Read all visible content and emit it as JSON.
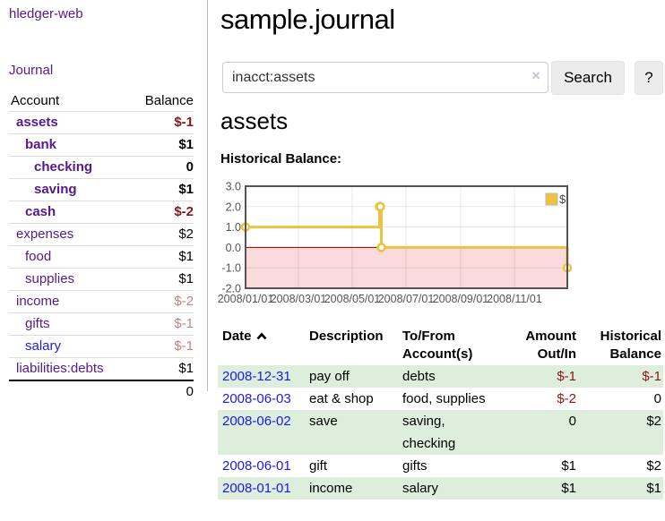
{
  "app": {
    "brand": "hledger-web",
    "nav_journal": "Journal"
  },
  "colors": {
    "purple_link": "#551a8b",
    "blue_link": "#1a1ae6",
    "negative": "#8b1616",
    "negative_dim": "#c08585",
    "row_green": "#ddeedd",
    "tick_gray": "#545454",
    "button_bg": "#ececec",
    "button_border": "#e3e3e3",
    "input_border": "#cccccc",
    "divider": "#bbbbbb",
    "sidebar_line": "#dddddd",
    "clear_icon": "#cbc3dc"
  },
  "sidebar": {
    "col_account": "Account",
    "col_balance": "Balance",
    "accounts": [
      {
        "name": "assets",
        "balance": "$-1"
      },
      {
        "name": "bank",
        "balance": "$1"
      },
      {
        "name": "checking",
        "balance": "0"
      },
      {
        "name": "saving",
        "balance": "$1"
      },
      {
        "name": "cash",
        "balance": "$-2"
      },
      {
        "name": "expenses",
        "balance": "$2"
      },
      {
        "name": "food",
        "balance": "$1"
      },
      {
        "name": "supplies",
        "balance": "$1"
      },
      {
        "name": "income",
        "balance": "$-2"
      },
      {
        "name": "gifts",
        "balance": "$-1"
      },
      {
        "name": "salary",
        "balance": "$-1"
      },
      {
        "name": "liabilities:debts",
        "balance": "$1"
      }
    ],
    "total": "0"
  },
  "header": {
    "title": "sample.journal"
  },
  "search": {
    "value": "inacct:assets",
    "clear_icon": "×",
    "button": "Search",
    "help_button": "?"
  },
  "account_page": {
    "heading": "assets",
    "chart_label": "Historical Balance:"
  },
  "chart_data": {
    "type": "line",
    "step": true,
    "title": "Historical Balance:",
    "series": [
      {
        "name": "$",
        "color": "#edc240",
        "points": [
          [
            "2008-01-01",
            1
          ],
          [
            "2008-06-01",
            2
          ],
          [
            "2008-06-02",
            2
          ],
          [
            "2008-06-03",
            0
          ],
          [
            "2008-12-31",
            -1
          ]
        ]
      }
    ],
    "xlim": [
      "2008-01-01",
      "2008-12-31"
    ],
    "ylim": [
      -2,
      3
    ],
    "x_ticks": [
      "2008/01/01",
      "2008/03/01",
      "2008/05/01",
      "2008/07/01",
      "2008/09/01",
      "2008/11/01"
    ],
    "y_ticks": [
      "3.0",
      "2.0",
      "1.0",
      "0.0",
      "-1.0",
      "-2.0"
    ],
    "legend_position": "top-right",
    "grid": true,
    "negative_region_color": "#fadada",
    "zero_line_color": "#8b0000",
    "border_color": "#545454"
  },
  "register": {
    "headers": {
      "date": "Date",
      "description": "Description",
      "accounts": "To/From Account(s)",
      "amount": "Amount Out/In",
      "balance": "Historical Balance"
    },
    "rows": [
      {
        "date": "2008-12-31",
        "description": "pay off",
        "accounts": "debts",
        "amount": "$-1",
        "balance": "$-1"
      },
      {
        "date": "2008-06-03",
        "description": "eat & shop",
        "accounts": "food, supplies",
        "amount": "$-2",
        "balance": "0"
      },
      {
        "date": "2008-06-02",
        "description": "save",
        "accounts": "saving, checking",
        "amount": "0",
        "balance": "$2"
      },
      {
        "date": "2008-06-01",
        "description": "gift",
        "accounts": "gifts",
        "amount": "$1",
        "balance": "$2"
      },
      {
        "date": "2008-01-01",
        "description": "income",
        "accounts": "salary",
        "amount": "$1",
        "balance": "$1"
      }
    ]
  }
}
